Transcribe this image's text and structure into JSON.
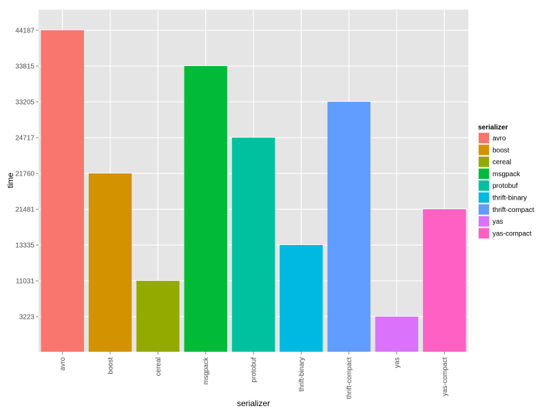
{
  "chart_data": {
    "type": "bar",
    "xlabel": "serializer",
    "ylabel": "time",
    "categories": [
      "avro",
      "boost",
      "cereal",
      "msgpack",
      "protobuf",
      "thrift-binary",
      "thrift-compact",
      "yas",
      "yas-compact"
    ],
    "y_ticks": [
      "3223",
      "11031",
      "13335",
      "21481",
      "21760",
      "24717",
      "33205",
      "33815",
      "44187"
    ],
    "bar_levels": [
      9,
      5,
      2,
      8,
      6,
      3,
      7,
      1,
      4
    ],
    "colors": [
      "#F8766D",
      "#D39200",
      "#93AA00",
      "#00BA38",
      "#00C19F",
      "#00B9E3",
      "#619CFF",
      "#DB72FB",
      "#FF61C3"
    ],
    "grid": true,
    "legend": {
      "title": "serializer",
      "position": "right",
      "entries": [
        "avro",
        "boost",
        "cereal",
        "msgpack",
        "protobuf",
        "thrift-binary",
        "thrift-compact",
        "yas",
        "yas-compact"
      ]
    }
  }
}
